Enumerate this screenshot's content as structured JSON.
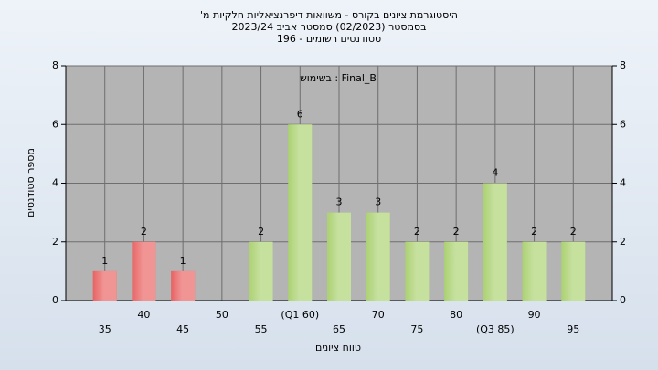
{
  "chart_data": {
    "type": "bar",
    "title": "היסטוגרמת ציונים בקורס - משוואות דיפרנציאליות חלקיות מ'",
    "subtitle": "בסמסטר (02/2023) סמסטר אביב 2023/24",
    "subtitle2": "סטודנטים רשומים - 196",
    "annotation": "Final_B : בשימוש",
    "xlabel": "טווח ציונים",
    "ylabel": "מספר סטודנטים",
    "categories": [
      "35",
      "40",
      "45",
      "50",
      "55",
      "(Q1 60)",
      "65",
      "70",
      "75",
      "80",
      "(Q3 85)",
      "90",
      "95"
    ],
    "values": [
      1,
      2,
      1,
      null,
      2,
      6,
      3,
      3,
      2,
      2,
      4,
      2,
      2
    ],
    "colors": [
      "#e02828",
      "#e02828",
      "#e02828",
      "#e02828",
      "#8cc03c",
      "#8cc03c",
      "#8cc03c",
      "#8cc03c",
      "#8cc03c",
      "#8cc03c",
      "#8cc03c",
      "#8cc03c",
      "#8cc03c"
    ],
    "ylim": [
      0,
      8
    ],
    "yticks": [
      0,
      2,
      4,
      6,
      8
    ],
    "grid": true
  }
}
